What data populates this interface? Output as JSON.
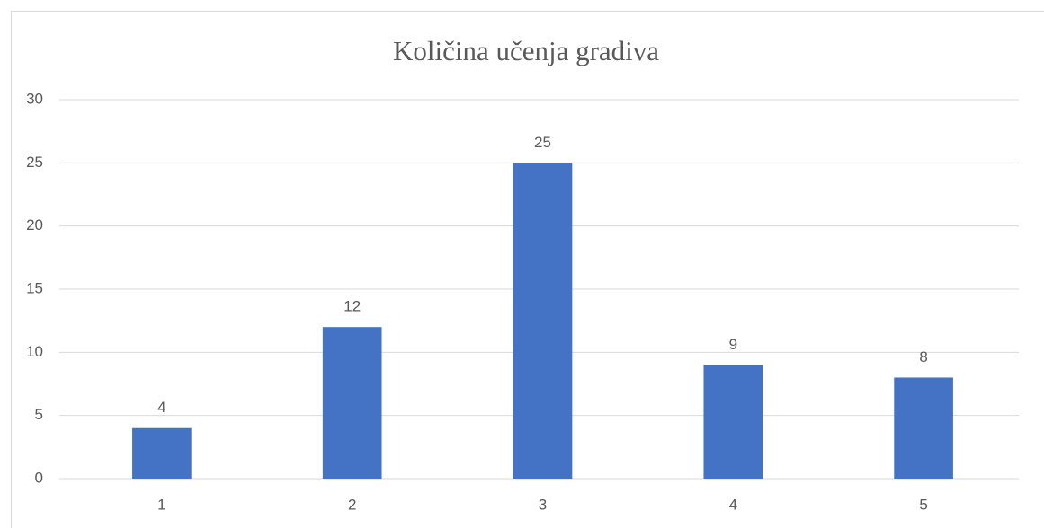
{
  "chart_data": {
    "type": "bar",
    "title": "Količina učenja gradiva",
    "categories": [
      "1",
      "2",
      "3",
      "4",
      "5"
    ],
    "values": [
      4,
      12,
      25,
      9,
      8
    ],
    "color": "#4472c4",
    "ylim": [
      0,
      30
    ],
    "yticks": [
      0,
      5,
      10,
      15,
      20,
      25,
      30
    ],
    "grid": true
  }
}
